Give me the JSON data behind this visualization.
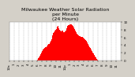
{
  "title": "Milwaukee Weather Solar Radiation\nper Minute\n(24 Hours)",
  "background_color": "#d4d0c8",
  "plot_bg_color": "#ffffff",
  "bar_color": "#ff0000",
  "grid_color": "#aaaaaa",
  "ylim": [
    0,
    1000
  ],
  "title_fontsize": 4.5,
  "tick_fontsize": 3.0,
  "n_minutes": 1440,
  "sunrise_minute": 360,
  "sunset_minute": 1140,
  "peak_minute": 750,
  "peak_value": 850,
  "y_ticks": [
    0,
    200,
    400,
    600,
    800,
    1000
  ],
  "y_tick_labels": [
    "0",
    "2",
    "4",
    "6",
    "8",
    "10"
  ],
  "x_tick_positions": [
    0,
    60,
    120,
    180,
    240,
    300,
    360,
    420,
    480,
    540,
    600,
    660,
    720,
    780,
    840,
    900,
    960,
    1020,
    1080,
    1140,
    1200,
    1260,
    1320,
    1380
  ],
  "x_tick_labels": [
    "12a",
    "1",
    "2",
    "3",
    "4",
    "5",
    "6",
    "7",
    "8",
    "9",
    "10",
    "11",
    "12p",
    "1",
    "2",
    "3",
    "4",
    "5",
    "6",
    "7",
    "8",
    "9",
    "10",
    "11"
  ]
}
